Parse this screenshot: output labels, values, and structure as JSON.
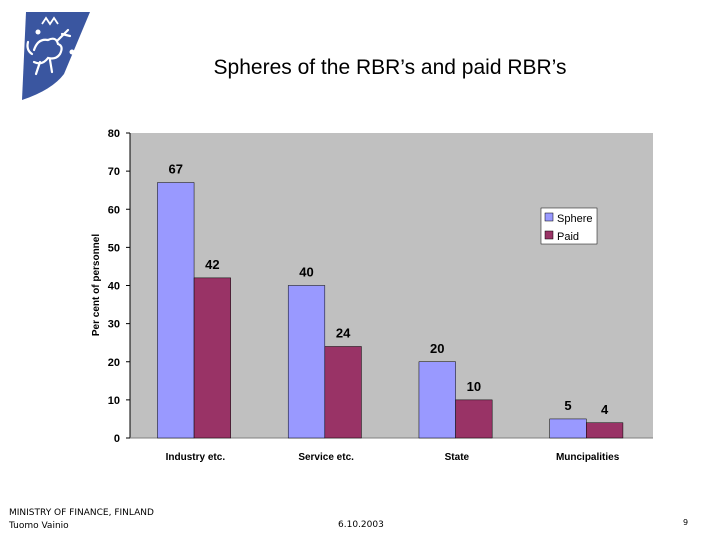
{
  "slide": {
    "title": "Spheres of the RBR’s  and paid RBR’s",
    "footer_org": "MINISTRY OF FINANCE, FINLAND",
    "footer_author": "Tuomo Vainio",
    "footer_date": "6.10.2003",
    "page_number": "9"
  },
  "logo": {
    "icon": "finnish-lion-coat-of-arms-icon",
    "color": "#3a56a0"
  },
  "chart_data": {
    "type": "bar",
    "categories": [
      "Industry etc.",
      "Service etc.",
      "State",
      "Muncipalities"
    ],
    "series": [
      {
        "name": "Sphere",
        "values": [
          67,
          40,
          20,
          5
        ],
        "color": "#9999ff"
      },
      {
        "name": "Paid",
        "values": [
          42,
          24,
          10,
          4
        ],
        "color": "#993366"
      }
    ],
    "data_labels": [
      [
        "67",
        "40",
        "20",
        "5"
      ],
      [
        "42",
        "24",
        "10",
        "4"
      ]
    ],
    "ylabel": "Per cent of personnel",
    "xlabel": "",
    "ylim": [
      0,
      80
    ],
    "yticks": [
      0,
      10,
      20,
      30,
      40,
      50,
      60,
      70,
      80
    ],
    "grid": false,
    "legend_position": "top-right",
    "plot_background": "#c0c0c0"
  }
}
